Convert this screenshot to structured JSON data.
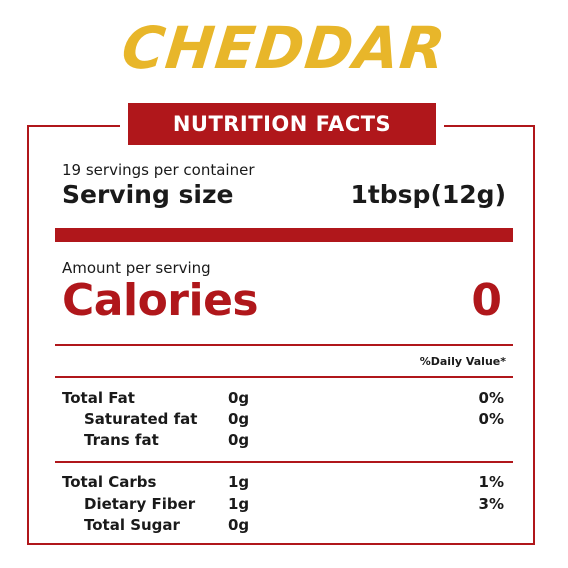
{
  "brand": {
    "name": "CHEDDAR",
    "color": "#e8b62a"
  },
  "header": {
    "title": "NUTRITION FACTS",
    "accent_color": "#b0171b"
  },
  "servings": {
    "per_container": "19 servings per container",
    "size_label": "Serving size",
    "size_value": "1tbsp(12g)"
  },
  "calories": {
    "amount_label": "Amount per serving",
    "label": "Calories",
    "value": "0"
  },
  "daily_value_header": "%Daily Value*",
  "nutrients": [
    {
      "name": "Total Fat",
      "amount": "0g",
      "dv": "0%"
    },
    {
      "name": "Saturated fat",
      "amount": "0g",
      "dv": "0%"
    },
    {
      "name": "Trans fat",
      "amount": "0g",
      "dv": ""
    },
    {
      "name": "Total Carbs",
      "amount": "1g",
      "dv": "1%"
    },
    {
      "name": "Dietary Fiber",
      "amount": "1g",
      "dv": "3%"
    },
    {
      "name": "Total Sugar",
      "amount": "0g",
      "dv": ""
    }
  ]
}
